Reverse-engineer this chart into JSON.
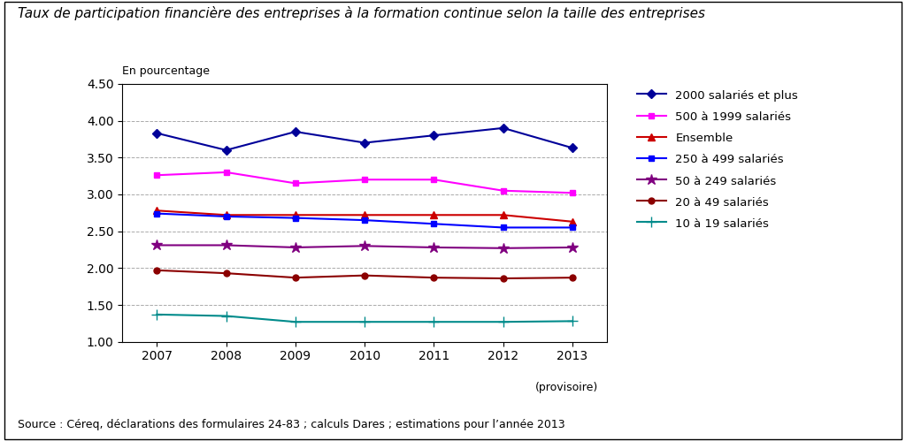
{
  "title": "Taux de participation financière des entreprises à la formation continue selon la taille des entreprises",
  "subtitle": "En pourcentage",
  "footnote": "Source : Céreq, déclarations des formulaires 24-83 ; calculs Dares ; estimations pour l’année 2013",
  "years": [
    2007,
    2008,
    2009,
    2010,
    2011,
    2012,
    2013
  ],
  "series": [
    {
      "label": "2000 salariés et plus",
      "color": "#000099",
      "marker": "D",
      "markersize": 5,
      "linewidth": 1.5,
      "values": [
        3.83,
        3.6,
        3.85,
        3.7,
        3.8,
        3.9,
        3.63
      ]
    },
    {
      "label": "500 à 1999 salariés",
      "color": "#FF00FF",
      "marker": "s",
      "markersize": 5,
      "linewidth": 1.5,
      "values": [
        3.26,
        3.3,
        3.15,
        3.2,
        3.2,
        3.05,
        3.02
      ]
    },
    {
      "label": "Ensemble",
      "color": "#CC0000",
      "marker": "^",
      "markersize": 6,
      "linewidth": 1.5,
      "values": [
        2.78,
        2.72,
        2.72,
        2.72,
        2.72,
        2.72,
        2.63
      ]
    },
    {
      "label": "250 à 499 salariés",
      "color": "#0000FF",
      "marker": "s",
      "markersize": 5,
      "linewidth": 1.5,
      "values": [
        2.74,
        2.7,
        2.68,
        2.65,
        2.6,
        2.55,
        2.55
      ]
    },
    {
      "label": "50 à 249 salariés",
      "color": "#800080",
      "marker": "*",
      "markersize": 9,
      "linewidth": 1.5,
      "values": [
        2.31,
        2.31,
        2.28,
        2.3,
        2.28,
        2.27,
        2.28
      ]
    },
    {
      "label": "20 à 49 salariés",
      "color": "#8B0000",
      "marker": "o",
      "markersize": 5,
      "linewidth": 1.5,
      "values": [
        1.97,
        1.93,
        1.87,
        1.9,
        1.87,
        1.86,
        1.87
      ]
    },
    {
      "label": "10 à 19 salariés",
      "color": "#008B8B",
      "marker": "+",
      "markersize": 8,
      "linewidth": 1.5,
      "values": [
        1.37,
        1.35,
        1.27,
        1.27,
        1.27,
        1.27,
        1.28
      ]
    }
  ],
  "ylim": [
    1.0,
    4.5
  ],
  "yticks": [
    1.0,
    1.5,
    2.0,
    2.5,
    3.0,
    3.5,
    4.0,
    4.5
  ],
  "background_color": "#ffffff",
  "plot_bg_color": "#ffffff",
  "grid_color": "#aaaaaa",
  "xlabel_provisoire": "(provisoire)"
}
